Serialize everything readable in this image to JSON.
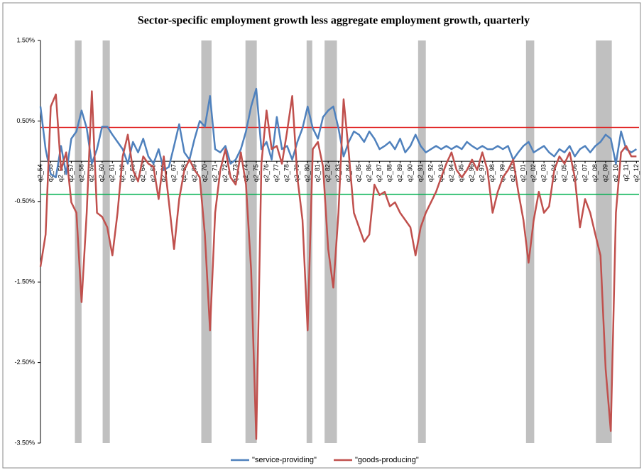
{
  "chart_data": {
    "type": "line",
    "title": "Sector-specific employment growth less aggregate employment growth, quarterly",
    "x": [
      1954.25,
      1954.75,
      1955.25,
      1955.75,
      1956.25,
      1956.75,
      1957.25,
      1957.75,
      1958.25,
      1958.75,
      1959.25,
      1959.75,
      1960.25,
      1960.75,
      1961.25,
      1961.75,
      1962.25,
      1962.75,
      1963.25,
      1963.75,
      1964.25,
      1964.75,
      1965.25,
      1965.75,
      1966.25,
      1966.75,
      1967.25,
      1967.75,
      1968.25,
      1968.75,
      1969.25,
      1969.75,
      1970.25,
      1970.75,
      1971.25,
      1971.75,
      1972.25,
      1972.75,
      1973.25,
      1973.75,
      1974.25,
      1974.75,
      1975.25,
      1975.75,
      1976.25,
      1976.75,
      1977.25,
      1977.75,
      1978.25,
      1978.75,
      1979.25,
      1979.75,
      1980.25,
      1980.75,
      1981.25,
      1981.75,
      1982.25,
      1982.75,
      1983.25,
      1983.75,
      1984.25,
      1984.75,
      1985.25,
      1985.75,
      1986.25,
      1986.75,
      1987.25,
      1987.75,
      1988.25,
      1988.75,
      1989.25,
      1989.75,
      1990.25,
      1990.75,
      1991.25,
      1991.75,
      1992.25,
      1992.75,
      1993.25,
      1993.75,
      1994.25,
      1994.75,
      1995.25,
      1995.75,
      1996.25,
      1996.75,
      1997.25,
      1997.75,
      1998.25,
      1998.75,
      1999.25,
      1999.75,
      2000.25,
      2000.75,
      2001.25,
      2001.75,
      2002.25,
      2002.75,
      2003.25,
      2003.75,
      2004.25,
      2004.75,
      2005.25,
      2005.75,
      2006.25,
      2006.75,
      2007.25,
      2007.75,
      2008.25,
      2008.75,
      2009.25,
      2009.75,
      2010.25,
      2010.75,
      2011.25,
      2011.75,
      2012.25
    ],
    "series": [
      {
        "name": "\"service-providing\"",
        "color": "#4f81bd",
        "values": [
          0.68,
          0.15,
          -0.16,
          -0.2,
          0.19,
          -0.16,
          0.28,
          0.37,
          0.63,
          0.41,
          -0.03,
          0.15,
          0.43,
          0.43,
          0.33,
          0.24,
          0.15,
          -0.03,
          0.24,
          0.11,
          0.28,
          0.06,
          -0.03,
          0.15,
          -0.11,
          -0.07,
          0.19,
          0.46,
          0.11,
          0.02,
          0.28,
          0.5,
          0.43,
          0.81,
          0.15,
          0.11,
          0.19,
          -0.03,
          0.02,
          0.15,
          0.37,
          0.68,
          0.9,
          0.15,
          0.24,
          0.02,
          0.55,
          0.15,
          0.19,
          0.02,
          0.24,
          0.41,
          0.68,
          0.41,
          0.28,
          0.55,
          0.63,
          0.68,
          0.41,
          0.06,
          0.24,
          0.37,
          0.33,
          0.24,
          0.37,
          0.28,
          0.15,
          0.19,
          0.24,
          0.15,
          0.28,
          0.11,
          0.19,
          0.33,
          0.19,
          0.11,
          0.15,
          0.19,
          0.15,
          0.19,
          0.15,
          0.19,
          0.15,
          0.24,
          0.19,
          0.15,
          0.19,
          0.15,
          0.15,
          0.19,
          0.15,
          0.19,
          0.02,
          0.11,
          0.19,
          0.24,
          0.11,
          0.15,
          0.19,
          0.11,
          0.06,
          0.15,
          0.11,
          0.19,
          0.06,
          0.15,
          0.19,
          0.11,
          0.19,
          0.24,
          0.33,
          0.28,
          -0.03,
          0.37,
          0.15,
          0.11,
          0.15
        ]
      },
      {
        "name": "\"goods-producing\"",
        "color": "#c0504d",
        "values": [
          -1.31,
          -0.91,
          0.68,
          0.83,
          -0.11,
          0.11,
          -0.51,
          -0.64,
          -1.75,
          -0.64,
          0.87,
          -0.64,
          -0.69,
          -0.82,
          -1.17,
          -0.64,
          0.06,
          0.33,
          -0.11,
          -0.25,
          0.06,
          -0.03,
          -0.07,
          -0.47,
          0.06,
          -0.51,
          -1.09,
          -0.47,
          -0.11,
          0.02,
          -0.11,
          -0.2,
          -0.91,
          -2.1,
          -0.64,
          -0.11,
          0.15,
          -0.2,
          -0.29,
          0.11,
          -0.29,
          -1.35,
          -3.45,
          -0.03,
          0.63,
          0.15,
          0.19,
          -0.03,
          0.37,
          0.81,
          -0.2,
          -0.73,
          -2.1,
          0.15,
          0.24,
          -0.07,
          -1.09,
          -1.57,
          -0.64,
          0.77,
          0.11,
          -0.64,
          -0.82,
          -1.0,
          -0.91,
          -0.29,
          -0.42,
          -0.38,
          -0.56,
          -0.51,
          -0.64,
          -0.73,
          -0.82,
          -1.17,
          -0.82,
          -0.64,
          -0.51,
          -0.38,
          -0.2,
          -0.03,
          0.11,
          -0.11,
          -0.2,
          -0.11,
          0.02,
          -0.11,
          0.11,
          -0.11,
          -0.64,
          -0.38,
          -0.2,
          -0.11,
          0.02,
          -0.38,
          -0.73,
          -1.26,
          -0.73,
          -0.38,
          -0.64,
          -0.56,
          -0.11,
          0.06,
          -0.03,
          0.11,
          -0.2,
          -0.82,
          -0.47,
          -0.64,
          -0.91,
          -1.17,
          -2.58,
          -3.35,
          -0.64,
          0.11,
          0.19,
          0.06,
          0.06
        ]
      }
    ],
    "xlim": [
      1954.25,
      2012.5
    ],
    "xticks": [
      {
        "value": 1954.25,
        "label": "q2_54"
      },
      {
        "value": 1955.25,
        "label": "q2_55"
      },
      {
        "value": 1956.25,
        "label": "q2_56"
      },
      {
        "value": 1957.25,
        "label": "q2_57"
      },
      {
        "value": 1958.25,
        "label": "q2_58"
      },
      {
        "value": 1959.25,
        "label": "q2_59"
      },
      {
        "value": 1960.25,
        "label": "q2_60"
      },
      {
        "value": 1961.25,
        "label": "q2_61"
      },
      {
        "value": 1962.25,
        "label": "q2_62"
      },
      {
        "value": 1963.25,
        "label": "q2_63"
      },
      {
        "value": 1964.25,
        "label": "q2_64"
      },
      {
        "value": 1965.25,
        "label": "q2_65"
      },
      {
        "value": 1966.25,
        "label": "q2_66"
      },
      {
        "value": 1967.25,
        "label": "q2_67"
      },
      {
        "value": 1968.25,
        "label": "q2_68"
      },
      {
        "value": 1969.25,
        "label": "q2_69"
      },
      {
        "value": 1970.25,
        "label": "q2_70"
      },
      {
        "value": 1971.25,
        "label": "q2_71"
      },
      {
        "value": 1972.25,
        "label": "q2_72"
      },
      {
        "value": 1973.25,
        "label": "q2_73"
      },
      {
        "value": 1974.25,
        "label": "q2_74"
      },
      {
        "value": 1975.25,
        "label": "q2_75"
      },
      {
        "value": 1976.25,
        "label": "q2_76"
      },
      {
        "value": 1977.25,
        "label": "q2_77"
      },
      {
        "value": 1978.25,
        "label": "q2_78"
      },
      {
        "value": 1979.25,
        "label": "q2_79"
      },
      {
        "value": 1980.25,
        "label": "q2_80"
      },
      {
        "value": 1981.25,
        "label": "q2_81"
      },
      {
        "value": 1982.25,
        "label": "q2_82"
      },
      {
        "value": 1983.25,
        "label": "q2_83"
      },
      {
        "value": 1984.25,
        "label": "q2_84"
      },
      {
        "value": 1985.25,
        "label": "q2_85"
      },
      {
        "value": 1986.25,
        "label": "q2_86"
      },
      {
        "value": 1987.25,
        "label": "q2_87"
      },
      {
        "value": 1988.25,
        "label": "q2_88"
      },
      {
        "value": 1989.25,
        "label": "q2_89"
      },
      {
        "value": 1990.25,
        "label": "q2_90"
      },
      {
        "value": 1991.25,
        "label": "q2_91"
      },
      {
        "value": 1992.25,
        "label": "q2_92"
      },
      {
        "value": 1993.25,
        "label": "q2_93"
      },
      {
        "value": 1994.25,
        "label": "q2_94"
      },
      {
        "value": 1995.25,
        "label": "q2_95"
      },
      {
        "value": 1996.25,
        "label": "q2_96"
      },
      {
        "value": 1997.25,
        "label": "q2_97"
      },
      {
        "value": 1998.25,
        "label": "q2_98"
      },
      {
        "value": 1999.25,
        "label": "q2_99"
      },
      {
        "value": 2000.25,
        "label": "q2_00"
      },
      {
        "value": 2001.25,
        "label": "q2_01"
      },
      {
        "value": 2002.25,
        "label": "q2_02"
      },
      {
        "value": 2003.25,
        "label": "q2_03"
      },
      {
        "value": 2004.25,
        "label": "q2_04"
      },
      {
        "value": 2005.25,
        "label": "q2_05"
      },
      {
        "value": 2006.25,
        "label": "q2_06"
      },
      {
        "value": 2007.25,
        "label": "q2_07"
      },
      {
        "value": 2008.25,
        "label": "q2_08"
      },
      {
        "value": 2009.25,
        "label": "q2_09"
      },
      {
        "value": 2010.25,
        "label": "q2_10"
      },
      {
        "value": 2011.25,
        "label": "q2_11"
      },
      {
        "value": 2012.25,
        "label": "q2_12"
      }
    ],
    "ylim": [
      -3.5,
      1.5
    ],
    "yticks": [
      {
        "value": 1.5,
        "label": "1.50%"
      },
      {
        "value": 0.5,
        "label": "0.50%"
      },
      {
        "value": -0.5,
        "label": "-0.50%"
      },
      {
        "value": -1.5,
        "label": "-1.50%"
      },
      {
        "value": -2.5,
        "label": "-2.50%"
      },
      {
        "value": -3.5,
        "label": "-3.50%"
      }
    ],
    "shaded_ranges": [
      [
        1957.6,
        1958.25
      ],
      [
        1960.3,
        1961.0
      ],
      [
        1969.9,
        1970.9
      ],
      [
        1974.2,
        1975.3
      ],
      [
        1980.15,
        1980.7
      ],
      [
        1981.9,
        1983.1
      ],
      [
        1991.0,
        1991.75
      ],
      [
        2001.5,
        2002.3
      ],
      [
        2008.3,
        2009.85
      ]
    ],
    "shade_color": "#c0c0c0",
    "reference_lines": [
      {
        "value": 0.42,
        "color": "#e02020"
      },
      {
        "value": -0.41,
        "color": "#00b050"
      }
    ],
    "legend": "bottom"
  }
}
